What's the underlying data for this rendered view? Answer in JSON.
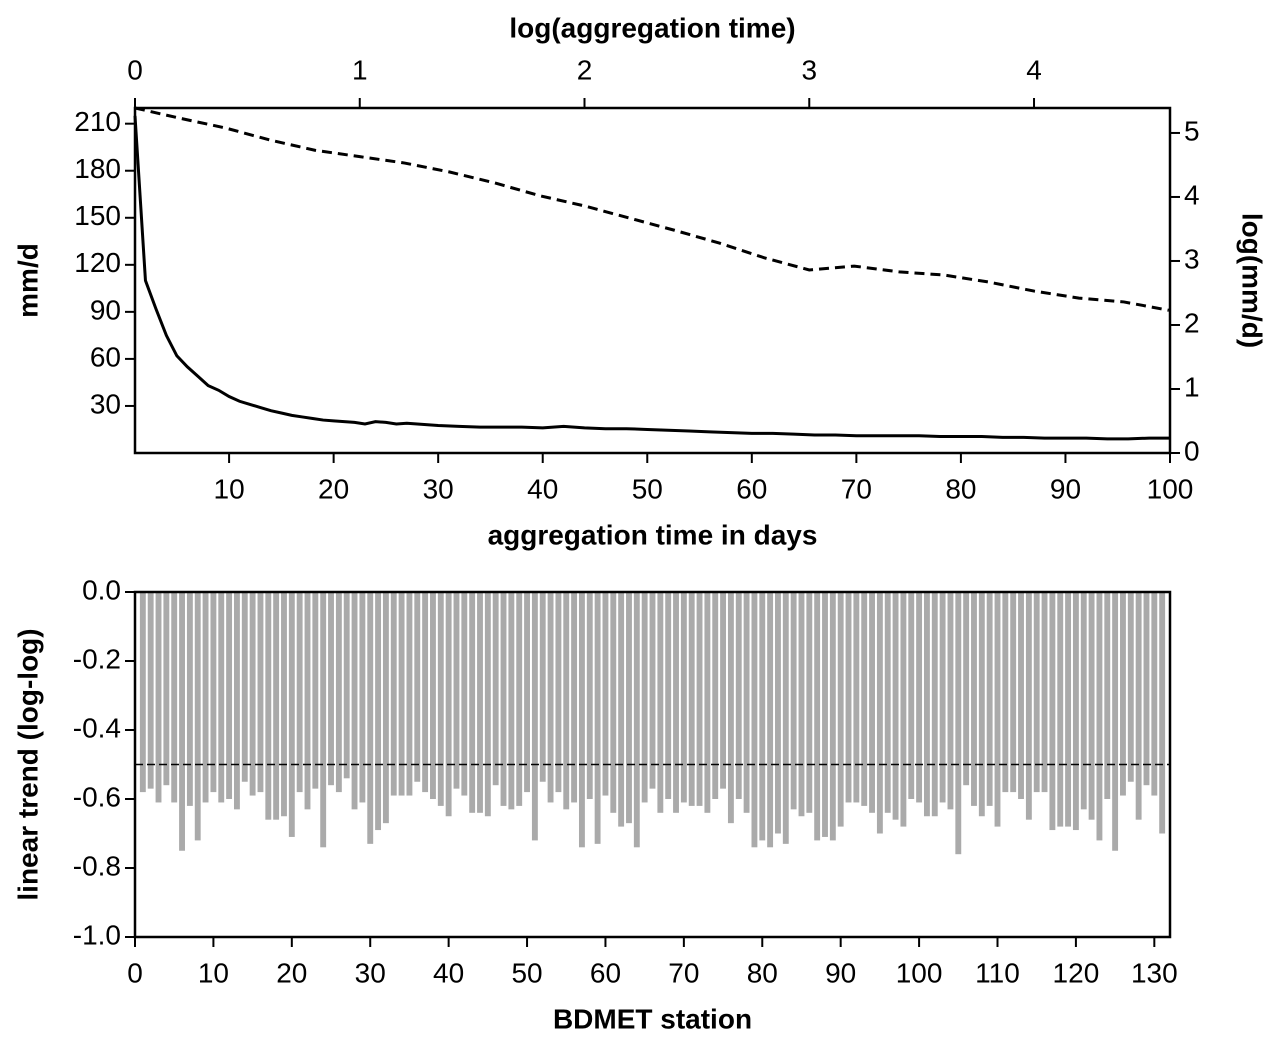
{
  "chart_data": [
    {
      "type": "line",
      "x_label": "aggregation time in days",
      "x2_label": "log(aggregation time)",
      "y_label": "mm/d",
      "y2_label": "log(mm/d)",
      "xlim": [
        1,
        100
      ],
      "xticks": [
        10,
        20,
        30,
        40,
        50,
        60,
        70,
        80,
        90,
        100
      ],
      "x2lim": [
        0,
        4.605
      ],
      "x2ticks": [
        0,
        1,
        2,
        3,
        4
      ],
      "ylim": [
        0,
        220
      ],
      "yticks": [
        30,
        60,
        90,
        120,
        150,
        180,
        210
      ],
      "y2lim": [
        0,
        5.39
      ],
      "y2ticks": [
        0,
        1,
        2,
        3,
        4,
        5
      ],
      "series": [
        {
          "color": "#000000",
          "dash": false,
          "x": [
            1,
            2,
            3,
            4,
            5,
            6,
            7,
            8,
            9,
            10,
            11,
            12,
            13,
            14,
            15,
            16,
            17,
            18,
            19,
            20,
            21,
            22,
            23,
            24,
            25,
            26,
            27,
            28,
            29,
            30,
            32,
            34,
            36,
            38,
            40,
            42,
            44,
            46,
            48,
            50,
            52,
            54,
            56,
            58,
            60,
            62,
            64,
            66,
            68,
            70,
            72,
            74,
            76,
            78,
            80,
            82,
            84,
            86,
            88,
            90,
            92,
            94,
            96,
            98,
            100
          ],
          "values": [
            215,
            110,
            92,
            75,
            62,
            55,
            49,
            43,
            40,
            36,
            33,
            31,
            29,
            27,
            25.5,
            24,
            23,
            22,
            21,
            20.5,
            20,
            19.5,
            18.5,
            20,
            19.5,
            18.5,
            19,
            18.5,
            18,
            17.5,
            17,
            16.5,
            16.5,
            16.5,
            16,
            17,
            16,
            15.5,
            15.5,
            15,
            14.5,
            14,
            13.5,
            13,
            12.5,
            12.5,
            12,
            11.5,
            11.5,
            11,
            11,
            11,
            11,
            10.5,
            10.5,
            10.5,
            10,
            10,
            9.5,
            9.5,
            9.5,
            9,
            9,
            9.5,
            9.5
          ]
        },
        {
          "color": "#000000",
          "dash": true,
          "axis": "y2",
          "xaxis": "x2",
          "x": [
            0,
            0.2,
            0.4,
            0.6,
            0.8,
            1.0,
            1.2,
            1.4,
            1.6,
            1.8,
            2.0,
            2.2,
            2.4,
            2.6,
            2.8,
            3.0,
            3.2,
            3.4,
            3.6,
            3.8,
            4.0,
            4.2,
            4.4,
            4.6
          ],
          "values": [
            5.39,
            5.23,
            5.08,
            4.89,
            4.73,
            4.63,
            4.53,
            4.39,
            4.22,
            4.02,
            3.86,
            3.67,
            3.48,
            3.28,
            3.05,
            2.86,
            2.92,
            2.83,
            2.78,
            2.67,
            2.53,
            2.42,
            2.36,
            2.23
          ]
        }
      ]
    },
    {
      "type": "bar",
      "x_label": "BDMET station",
      "y_label": "linear trend (log-log)",
      "xlim": [
        0,
        132
      ],
      "xticks": [
        0,
        10,
        20,
        30,
        40,
        50,
        60,
        70,
        80,
        90,
        100,
        110,
        120,
        130
      ],
      "ylim": [
        -1,
        0
      ],
      "yticks": [
        {
          "value": -1,
          "label": "-1.0"
        },
        -0.8,
        -0.6,
        -0.4,
        -0.2,
        {
          "value": 0,
          "label": "0.0"
        }
      ],
      "reference_line": -0.5,
      "color": "#aaaaaa",
      "x": [
        1,
        2,
        3,
        4,
        5,
        6,
        7,
        8,
        9,
        10,
        11,
        12,
        13,
        14,
        15,
        16,
        17,
        18,
        19,
        20,
        21,
        22,
        23,
        24,
        25,
        26,
        27,
        28,
        29,
        30,
        31,
        32,
        33,
        34,
        35,
        36,
        37,
        38,
        39,
        40,
        41,
        42,
        43,
        44,
        45,
        46,
        47,
        48,
        49,
        50,
        51,
        52,
        53,
        54,
        55,
        56,
        57,
        58,
        59,
        60,
        61,
        62,
        63,
        64,
        65,
        66,
        67,
        68,
        69,
        70,
        71,
        72,
        73,
        74,
        75,
        76,
        77,
        78,
        79,
        80,
        81,
        82,
        83,
        84,
        85,
        86,
        87,
        88,
        89,
        90,
        91,
        92,
        93,
        94,
        95,
        96,
        97,
        98,
        99,
        100,
        101,
        102,
        103,
        104,
        105,
        106,
        107,
        108,
        109,
        110,
        111,
        112,
        113,
        114,
        115,
        116,
        117,
        118,
        119,
        120,
        121,
        122,
        123,
        124,
        125,
        126,
        127,
        128,
        129,
        130,
        131
      ],
      "values": [
        -0.58,
        -0.57,
        -0.61,
        -0.56,
        -0.61,
        -0.75,
        -0.62,
        -0.72,
        -0.61,
        -0.58,
        -0.61,
        -0.6,
        -0.63,
        -0.55,
        -0.59,
        -0.58,
        -0.66,
        -0.66,
        -0.65,
        -0.71,
        -0.58,
        -0.63,
        -0.57,
        -0.74,
        -0.56,
        -0.58,
        -0.54,
        -0.63,
        -0.61,
        -0.73,
        -0.69,
        -0.67,
        -0.59,
        -0.59,
        -0.59,
        -0.55,
        -0.58,
        -0.6,
        -0.62,
        -0.65,
        -0.57,
        -0.59,
        -0.64,
        -0.64,
        -0.65,
        -0.56,
        -0.62,
        -0.63,
        -0.62,
        -0.58,
        -0.72,
        -0.55,
        -0.61,
        -0.58,
        -0.63,
        -0.61,
        -0.74,
        -0.6,
        -0.73,
        -0.59,
        -0.64,
        -0.68,
        -0.67,
        -0.74,
        -0.61,
        -0.57,
        -0.64,
        -0.6,
        -0.64,
        -0.61,
        -0.62,
        -0.62,
        -0.64,
        -0.6,
        -0.57,
        -0.67,
        -0.6,
        -0.64,
        -0.74,
        -0.72,
        -0.74,
        -0.7,
        -0.73,
        -0.63,
        -0.65,
        -0.64,
        -0.72,
        -0.71,
        -0.72,
        -0.68,
        -0.61,
        -0.61,
        -0.62,
        -0.64,
        -0.7,
        -0.64,
        -0.66,
        -0.68,
        -0.6,
        -0.61,
        -0.65,
        -0.65,
        -0.61,
        -0.63,
        -0.76,
        -0.56,
        -0.62,
        -0.65,
        -0.62,
        -0.68,
        -0.58,
        -0.58,
        -0.6,
        -0.66,
        -0.58,
        -0.58,
        -0.69,
        -0.68,
        -0.68,
        -0.69,
        -0.63,
        -0.66,
        -0.72,
        -0.6,
        -0.75,
        -0.59,
        -0.55,
        -0.66,
        -0.56,
        -0.59,
        -0.7
      ]
    }
  ]
}
